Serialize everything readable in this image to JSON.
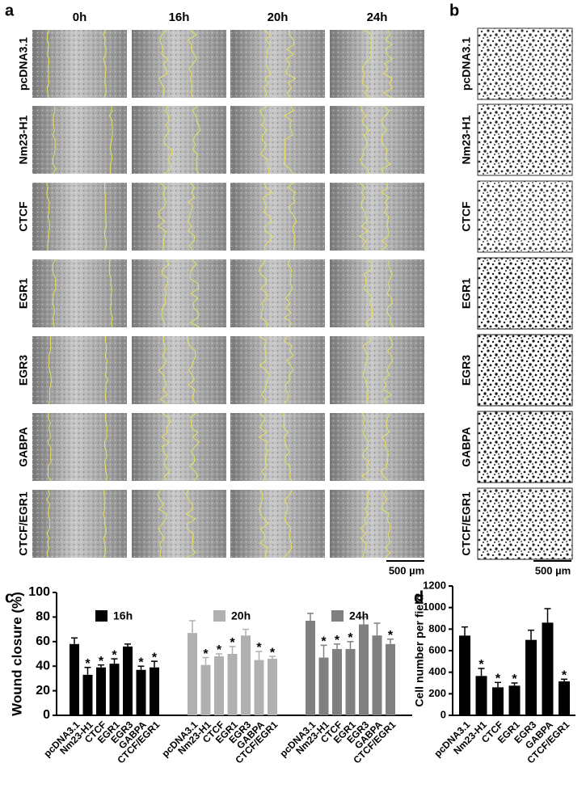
{
  "panel_labels": [
    "a",
    "b",
    "c",
    "d"
  ],
  "panel_a": {
    "columns": [
      "0h",
      "16h",
      "20h",
      "24h"
    ],
    "rows": [
      "pcDNA3.1",
      "Nm23-H1",
      "CTCF",
      "EGR1",
      "EGR3",
      "GABPA",
      "CTCF/EGR1"
    ],
    "scale_bar": "500 µm"
  },
  "panel_b": {
    "rows": [
      "pcDNA3.1",
      "Nm23-H1",
      "CTCF",
      "EGR1",
      "EGR3",
      "GABPA",
      "CTCF/EGR1"
    ],
    "scale_bar": "500 µm"
  },
  "chart_data": [
    {
      "type": "bar",
      "ylabel": "Wound closure (%)",
      "categories": [
        "pcDNA3.1",
        "Nm23-H1",
        "CTCF",
        "EGR1",
        "EGR3",
        "GABPA",
        "CTCF/EGR1"
      ],
      "series": [
        {
          "name": "16h",
          "color": "#000000",
          "values": [
            58,
            33,
            39,
            42,
            56,
            37,
            39
          ],
          "errors": [
            5,
            6,
            2,
            4,
            2,
            3,
            5
          ],
          "significance": [
            null,
            "*",
            "*",
            "*",
            null,
            "*",
            "*"
          ]
        },
        {
          "name": "20h",
          "color": "#b0b0b0",
          "values": [
            67,
            41,
            48,
            50,
            65,
            45,
            46
          ],
          "errors": [
            10,
            6,
            2,
            6,
            5,
            7,
            2
          ],
          "significance": [
            null,
            "*",
            "*",
            "*",
            null,
            "*",
            "*"
          ]
        },
        {
          "name": "24h",
          "color": "#808080",
          "values": [
            77,
            47,
            54,
            54,
            74,
            65,
            58
          ],
          "errors": [
            6,
            10,
            4,
            6,
            6,
            10,
            4
          ],
          "significance": [
            null,
            "*",
            "*",
            "*",
            null,
            null,
            "*"
          ]
        }
      ],
      "ylim": [
        0,
        100
      ],
      "yticks": [
        0,
        20,
        40,
        60,
        80,
        100
      ]
    },
    {
      "type": "bar",
      "ylabel": "Cell number per field",
      "categories": [
        "pcDNA3.1",
        "Nm23-H1",
        "CTCF",
        "EGR1",
        "EGR3",
        "GABPA",
        "CTCF/EGR1"
      ],
      "values": [
        740,
        365,
        260,
        275,
        700,
        860,
        315
      ],
      "errors": [
        80,
        70,
        45,
        25,
        90,
        130,
        20
      ],
      "significance": [
        null,
        "*",
        "*",
        "*",
        null,
        null,
        "*"
      ],
      "color": "#000000",
      "ylim": [
        0,
        1200
      ],
      "yticks": [
        0,
        200,
        400,
        600,
        800,
        1000,
        1200
      ]
    }
  ]
}
